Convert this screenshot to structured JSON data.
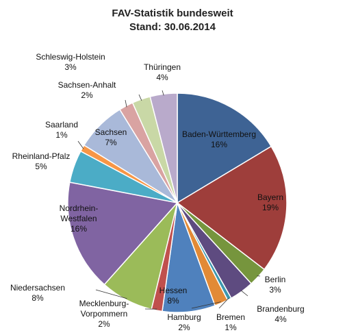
{
  "chart_data": {
    "type": "pie",
    "title": "FAV-Statistik bundesweit",
    "subtitle": "Stand: 30.06.2014",
    "slices": [
      {
        "name": "Baden-Württemberg",
        "label": "16%",
        "value": 16.4,
        "color": "#3E6394"
      },
      {
        "name": "Bayern",
        "label": "19%",
        "value": 19.0,
        "color": "#9E3E3B"
      },
      {
        "name": "Berlin",
        "label": "3%",
        "value": 2.8,
        "color": "#76953D"
      },
      {
        "name": "Brandenburg",
        "label": "4%",
        "value": 3.6,
        "color": "#5E4B80"
      },
      {
        "name": "Bremen",
        "label": "1%",
        "value": 0.6,
        "color": "#3D97AE"
      },
      {
        "name": "Hamburg",
        "label": "2%",
        "value": 2.0,
        "color": "#E28A36"
      },
      {
        "name": "Hessen",
        "label": "8%",
        "value": 7.8,
        "color": "#4F81BD"
      },
      {
        "name": "Mecklenburg-Vorpommern",
        "label": "2%",
        "value": 1.6,
        "color": "#C0504D"
      },
      {
        "name": "Niedersachsen",
        "label": "8%",
        "value": 7.8,
        "color": "#9BBB59"
      },
      {
        "name": "Nordrhein-Westfalen",
        "label": "16%",
        "value": 16.4,
        "color": "#8064A2"
      },
      {
        "name": "Rheinland-Pfalz",
        "label": "5%",
        "value": 4.8,
        "color": "#4BACC6"
      },
      {
        "name": "Saarland",
        "label": "1%",
        "value": 1.0,
        "color": "#F79646"
      },
      {
        "name": "Sachsen",
        "label": "7%",
        "value": 7.4,
        "color": "#A9B9D9"
      },
      {
        "name": "Sachsen-Anhalt",
        "label": "2%",
        "value": 2.1,
        "color": "#D9A3A2"
      },
      {
        "name": "Schleswig-Holstein",
        "label": "3%",
        "value": 2.7,
        "color": "#C9D8A6"
      },
      {
        "name": "Thüringen",
        "label": "4%",
        "value": 4.0,
        "color": "#B9AACB"
      }
    ]
  }
}
